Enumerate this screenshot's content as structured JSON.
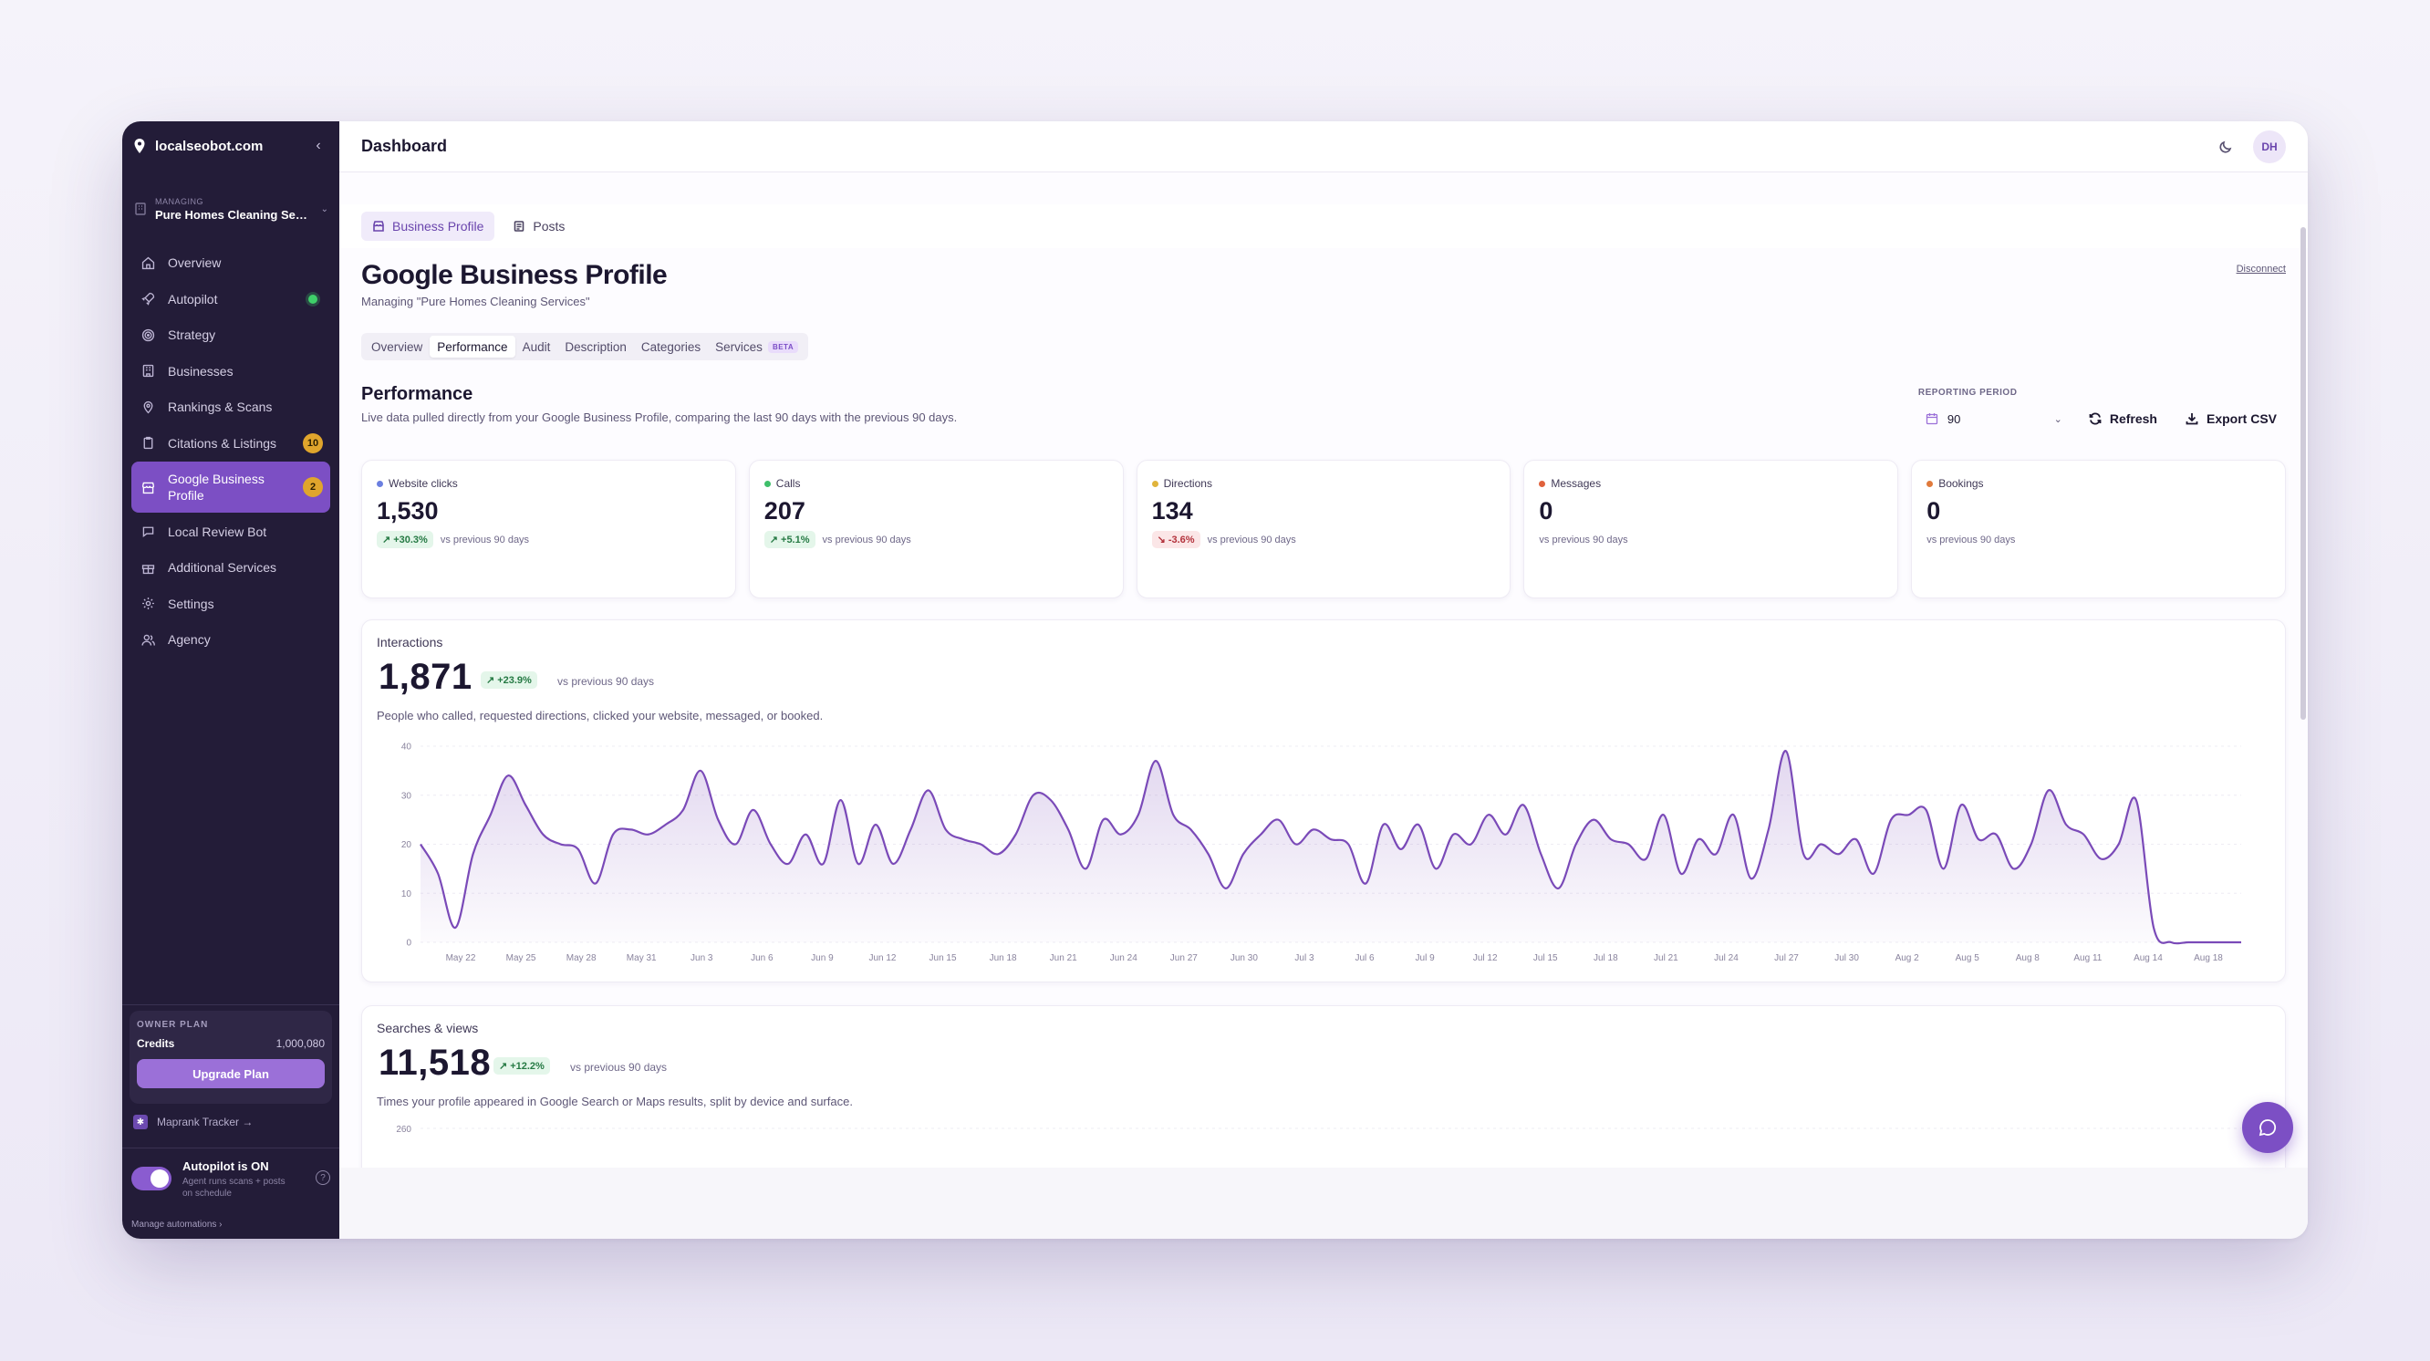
{
  "brand": {
    "name": "localseobot.com"
  },
  "managing": {
    "label": "MANAGING",
    "value": "Pure Homes Cleaning Serv..."
  },
  "nav": [
    {
      "label": "Overview",
      "icon": "home-icon"
    },
    {
      "label": "Autopilot",
      "icon": "rocket-icon",
      "status": "online"
    },
    {
      "label": "Strategy",
      "icon": "target-icon"
    },
    {
      "label": "Businesses",
      "icon": "building-icon"
    },
    {
      "label": "Rankings & Scans",
      "icon": "map-pin-icon"
    },
    {
      "label": "Citations & Listings",
      "icon": "clipboard-icon",
      "badge": "10"
    },
    {
      "label": "Google Business Profile",
      "icon": "store-icon",
      "badge": "2",
      "active": true
    },
    {
      "label": "Local Review Bot",
      "icon": "message-icon"
    },
    {
      "label": "Additional Services",
      "icon": "gift-icon"
    },
    {
      "label": "Settings",
      "icon": "gear-icon"
    },
    {
      "label": "Agency",
      "icon": "users-icon"
    }
  ],
  "plan": {
    "label": "OWNER PLAN",
    "credits_label": "Credits",
    "credits_value": "1,000,080",
    "upgrade_label": "Upgrade Plan"
  },
  "maprank": {
    "label": "Maprank Tracker →"
  },
  "autopilot": {
    "title": "Autopilot is ON",
    "desc": "Agent runs scans + posts on schedule",
    "manage": "Manage automations ›"
  },
  "topbar": {
    "title": "Dashboard",
    "avatar": "DH"
  },
  "subtabs": [
    {
      "label": "Business Profile",
      "active": true
    },
    {
      "label": "Posts",
      "active": false
    }
  ],
  "page": {
    "title": "Google Business Profile",
    "subtitle": "Managing \"Pure Homes Cleaning Services\"",
    "disconnect": "Disconnect"
  },
  "section_tabs": [
    {
      "label": "Overview"
    },
    {
      "label": "Performance",
      "active": true
    },
    {
      "label": "Audit"
    },
    {
      "label": "Description"
    },
    {
      "label": "Categories"
    },
    {
      "label": "Services",
      "badge": "BETA"
    }
  ],
  "performance": {
    "title": "Performance",
    "subtitle": "Live data pulled directly from your Google Business Profile, comparing the last 90 days with the previous 90 days.",
    "period_label": "REPORTING PERIOD",
    "period_value": "90",
    "refresh_label": "Refresh",
    "export_label": "Export CSV"
  },
  "kpis": [
    {
      "label": "Website clicks",
      "value": "1,530",
      "delta": "+30.3%",
      "direction": "up",
      "compare": "vs previous 90 days",
      "color": "#6b7fe0"
    },
    {
      "label": "Calls",
      "value": "207",
      "delta": "+5.1%",
      "direction": "up",
      "compare": "vs previous 90 days",
      "color": "#3fbf6a"
    },
    {
      "label": "Directions",
      "value": "134",
      "delta": "-3.6%",
      "direction": "down",
      "compare": "vs previous 90 days",
      "color": "#e0b43c"
    },
    {
      "label": "Messages",
      "value": "0",
      "delta": "",
      "direction": "none",
      "compare": "vs previous 90 days",
      "color": "#e0623c"
    },
    {
      "label": "Bookings",
      "value": "0",
      "delta": "",
      "direction": "none",
      "compare": "vs previous 90 days",
      "color": "#e07a3c"
    }
  ],
  "interactions": {
    "label": "Interactions",
    "value": "1,871",
    "delta": "+23.9%",
    "compare": "vs previous 90 days",
    "description": "People who called, requested directions, clicked your website, messaged, or booked."
  },
  "searches": {
    "label": "Searches & views",
    "value": "11,518",
    "delta": "+12.2%",
    "compare": "vs previous 90 days",
    "description": "Times your profile appeared in Google Search or Maps results, split by device and surface."
  },
  "chart_data": [
    {
      "type": "area",
      "title": "Interactions",
      "ylim": [
        0,
        40
      ],
      "y_ticks": [
        0,
        10,
        20,
        30,
        40
      ],
      "x_ticks": [
        "May 22",
        "May 25",
        "May 28",
        "May 31",
        "Jun 3",
        "Jun 6",
        "Jun 9",
        "Jun 12",
        "Jun 15",
        "Jun 18",
        "Jun 21",
        "Jun 24",
        "Jun 27",
        "Jun 30",
        "Jul 3",
        "Jul 6",
        "Jul 9",
        "Jul 12",
        "Jul 15",
        "Jul 18",
        "Jul 21",
        "Jul 24",
        "Jul 27",
        "Jul 30",
        "Aug 2",
        "Aug 5",
        "Aug 8",
        "Aug 11",
        "Aug 14",
        "Aug 18"
      ],
      "color": "#7a4ab8",
      "grid": true,
      "series": [
        {
          "values": [
            20,
            14,
            3,
            18,
            26,
            34,
            28,
            22,
            20,
            19,
            12,
            22,
            23,
            22,
            24,
            27,
            35,
            25,
            20,
            27,
            20,
            16,
            22,
            16,
            29,
            16,
            24,
            16,
            23,
            31,
            23,
            21,
            20,
            18,
            22,
            30,
            29,
            23,
            15,
            25,
            22,
            26,
            37,
            26,
            23,
            18,
            11,
            18,
            22,
            25,
            20,
            23,
            21,
            20,
            12,
            24,
            19,
            24,
            15,
            22,
            20,
            26,
            22,
            28,
            18,
            11,
            20,
            25,
            21,
            20,
            17,
            26,
            14,
            21,
            18,
            26,
            13,
            23,
            39,
            18,
            20,
            18,
            21,
            14,
            25,
            26,
            27,
            15,
            28,
            21,
            22,
            15,
            20,
            31,
            24,
            22,
            17,
            20,
            29,
            3,
            0,
            0,
            0,
            0,
            0
          ]
        }
      ]
    },
    {
      "type": "area",
      "title": "Searches & views",
      "y_ticks": [
        260
      ],
      "series": [
        {
          "name": "",
          "color": "#a9d7a5"
        },
        {
          "name": "",
          "color": "#b9a4e6"
        }
      ]
    }
  ]
}
